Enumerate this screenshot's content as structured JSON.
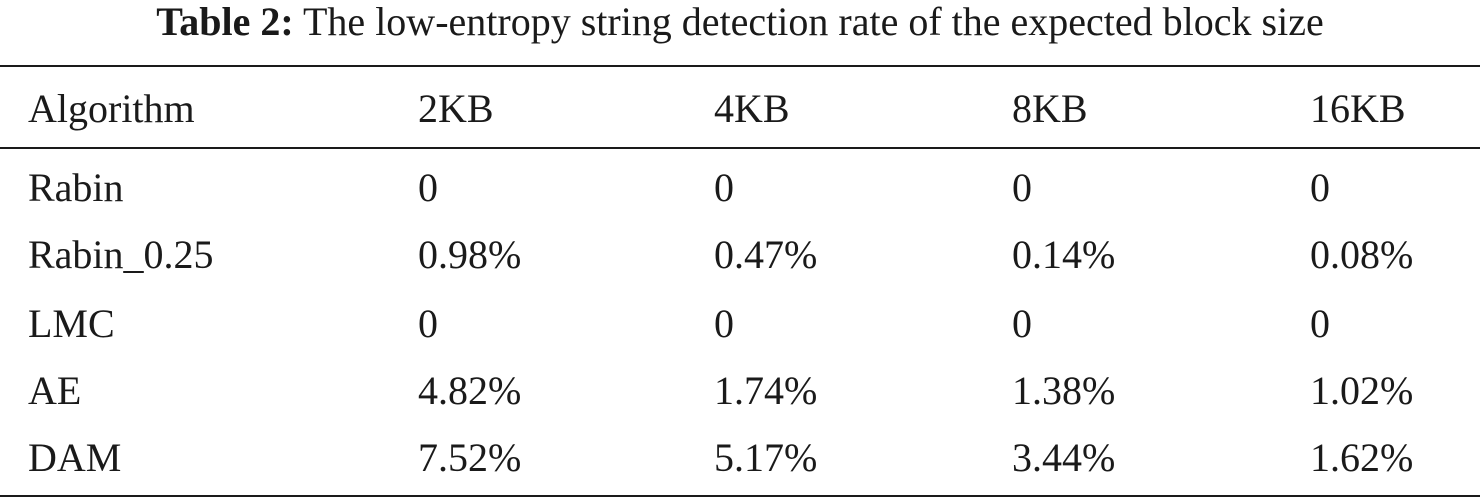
{
  "caption": {
    "label": "Table 2:",
    "text": "The low-entropy string detection rate of the expected block size"
  },
  "table": {
    "headers": [
      "Algorithm",
      "2KB",
      "4KB",
      "8KB",
      "16KB"
    ],
    "rows": [
      [
        "Rabin",
        "0",
        "0",
        "0",
        "0"
      ],
      [
        "Rabin_0.25",
        "0.98%",
        "0.47%",
        "0.14%",
        "0.08%"
      ],
      [
        "LMC",
        "0",
        "0",
        "0",
        "0"
      ],
      [
        "AE",
        "4.82%",
        "1.74%",
        "1.38%",
        "1.02%"
      ],
      [
        "DAM",
        "7.52%",
        "5.17%",
        "3.44%",
        "1.62%"
      ]
    ]
  }
}
